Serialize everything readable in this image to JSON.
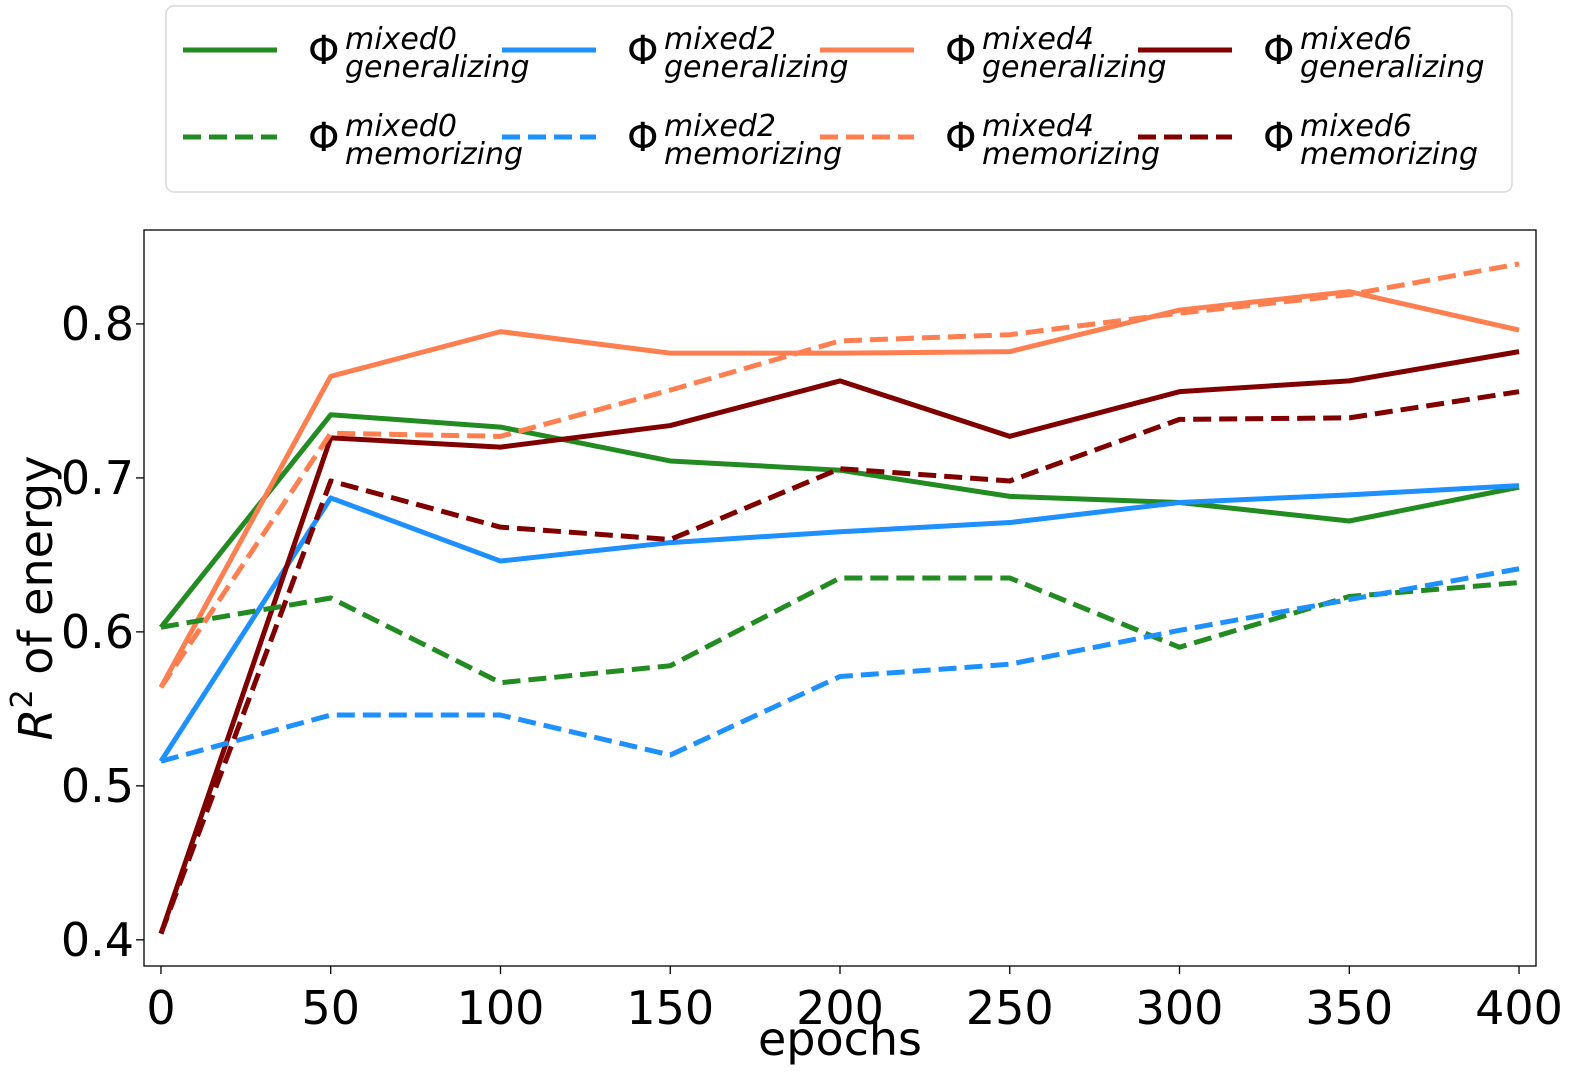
{
  "chart_data": {
    "type": "line",
    "title": "",
    "xlabel": "epochs",
    "ylabel_base": "R",
    "ylabel_sup": "2",
    "ylabel_rest": " of energy",
    "xlim": [
      -5,
      405
    ],
    "ylim": [
      0.383,
      0.861
    ],
    "xticks": [
      0,
      50,
      100,
      150,
      200,
      250,
      300,
      350,
      400
    ],
    "xtick_labels": [
      "0",
      "50",
      "100",
      "150",
      "200",
      "250",
      "300",
      "350",
      "400"
    ],
    "yticks": [
      0.4,
      0.5,
      0.6,
      0.7,
      0.8
    ],
    "ytick_labels": [
      "0.4",
      "0.5",
      "0.6",
      "0.7",
      "0.8"
    ],
    "grid": false,
    "legend_placement": "top, above plot, 4 columns",
    "x": [
      0,
      50,
      100,
      150,
      200,
      250,
      300,
      350,
      400
    ],
    "series": [
      {
        "symbol": "Φ",
        "sup": "mixed0",
        "sub": "generalizing",
        "color": "#228b22",
        "dash": "solid",
        "values": [
          0.603,
          0.741,
          0.733,
          0.711,
          0.705,
          0.688,
          0.684,
          0.672,
          0.694
        ]
      },
      {
        "symbol": "Φ",
        "sup": "mixed2",
        "sub": "generalizing",
        "color": "#1e90ff",
        "dash": "solid",
        "values": [
          0.516,
          0.687,
          0.646,
          0.658,
          0.665,
          0.671,
          0.684,
          0.689,
          0.695
        ]
      },
      {
        "symbol": "Φ",
        "sup": "mixed4",
        "sub": "generalizing",
        "color": "#ff7f50",
        "dash": "solid",
        "values": [
          0.564,
          0.766,
          0.795,
          0.781,
          0.781,
          0.782,
          0.809,
          0.821,
          0.796
        ]
      },
      {
        "symbol": "Φ",
        "sup": "mixed6",
        "sub": "generalizing",
        "color": "#800000",
        "dash": "solid",
        "values": [
          0.404,
          0.726,
          0.72,
          0.734,
          0.763,
          0.727,
          0.756,
          0.763,
          0.782
        ]
      },
      {
        "symbol": "Φ",
        "sup": "mixed0",
        "sub": "memorizing",
        "color": "#228b22",
        "dash": "dashed",
        "values": [
          0.603,
          0.622,
          0.567,
          0.578,
          0.635,
          0.635,
          0.59,
          0.623,
          0.632
        ]
      },
      {
        "symbol": "Φ",
        "sup": "mixed2",
        "sub": "memorizing",
        "color": "#1e90ff",
        "dash": "dashed",
        "values": [
          0.516,
          0.546,
          0.546,
          0.52,
          0.571,
          0.579,
          0.601,
          0.621,
          0.641
        ]
      },
      {
        "symbol": "Φ",
        "sup": "mixed4",
        "sub": "memorizing",
        "color": "#ff7f50",
        "dash": "dashed",
        "values": [
          0.564,
          0.729,
          0.727,
          0.757,
          0.789,
          0.793,
          0.807,
          0.819,
          0.839
        ]
      },
      {
        "symbol": "Φ",
        "sup": "mixed6",
        "sub": "memorizing",
        "color": "#800000",
        "dash": "dashed",
        "values": [
          0.404,
          0.698,
          0.668,
          0.66,
          0.706,
          0.698,
          0.738,
          0.739,
          0.756
        ]
      }
    ]
  }
}
